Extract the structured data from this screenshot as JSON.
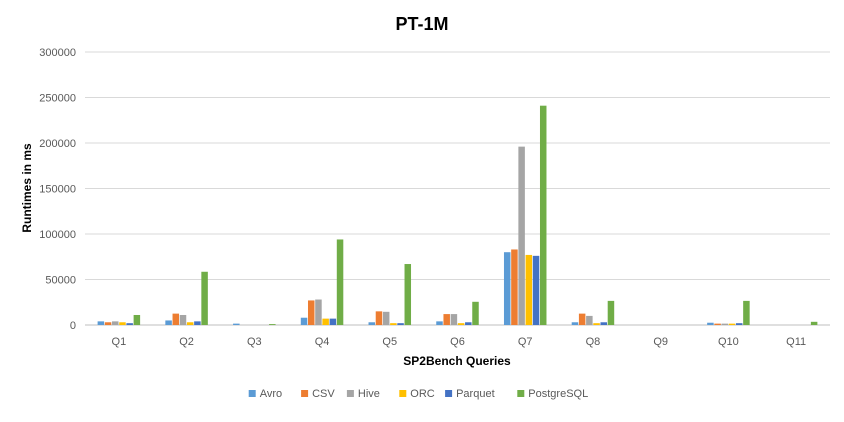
{
  "chart_data": {
    "type": "bar",
    "title": "PT-1M",
    "xlabel": "SP2Bench Queries",
    "ylabel": "Runtimes in ms",
    "ylim": [
      0,
      300000
    ],
    "yticks": [
      0,
      50000,
      100000,
      150000,
      200000,
      250000,
      300000
    ],
    "ytick_labels": [
      "0",
      "50000",
      "100000",
      "150000",
      "200000",
      "250000",
      "300000"
    ],
    "grid": true,
    "legend_position": "bottom",
    "categories": [
      "Q1",
      "Q2",
      "Q3",
      "Q4",
      "Q5",
      "Q6",
      "Q7",
      "Q8",
      "Q9",
      "Q10",
      "Q11"
    ],
    "series": [
      {
        "name": "Avro",
        "color": "#5b9bd5",
        "values": [
          4000,
          5000,
          1500,
          8000,
          3000,
          4000,
          80000,
          3000,
          0,
          2500,
          0
        ]
      },
      {
        "name": "CSV",
        "color": "#ed7d31",
        "values": [
          3000,
          12500,
          0,
          27000,
          15000,
          12000,
          83000,
          12500,
          0,
          1500,
          0
        ]
      },
      {
        "name": "Hive",
        "color": "#a5a5a5",
        "values": [
          4000,
          11000,
          0,
          28000,
          14500,
          12000,
          196000,
          10000,
          0,
          1500,
          0
        ]
      },
      {
        "name": "ORC",
        "color": "#ffc000",
        "values": [
          3000,
          3000,
          0,
          7000,
          2000,
          2000,
          77000,
          2000,
          0,
          1500,
          0
        ]
      },
      {
        "name": "Parquet",
        "color": "#4472c4",
        "values": [
          2000,
          4000,
          0,
          7000,
          2000,
          3000,
          76000,
          3000,
          0,
          2000,
          0
        ]
      },
      {
        "name": "PostgreSQL",
        "color": "#70ad47",
        "values": [
          11000,
          58500,
          1000,
          94000,
          67000,
          25500,
          241000,
          26500,
          0,
          26500,
          3500
        ]
      }
    ]
  },
  "colors": {
    "title_text": "#000000",
    "axis_text": "#595959",
    "gridline": "#d9d9d9",
    "baseline": "#bfbfbf"
  }
}
